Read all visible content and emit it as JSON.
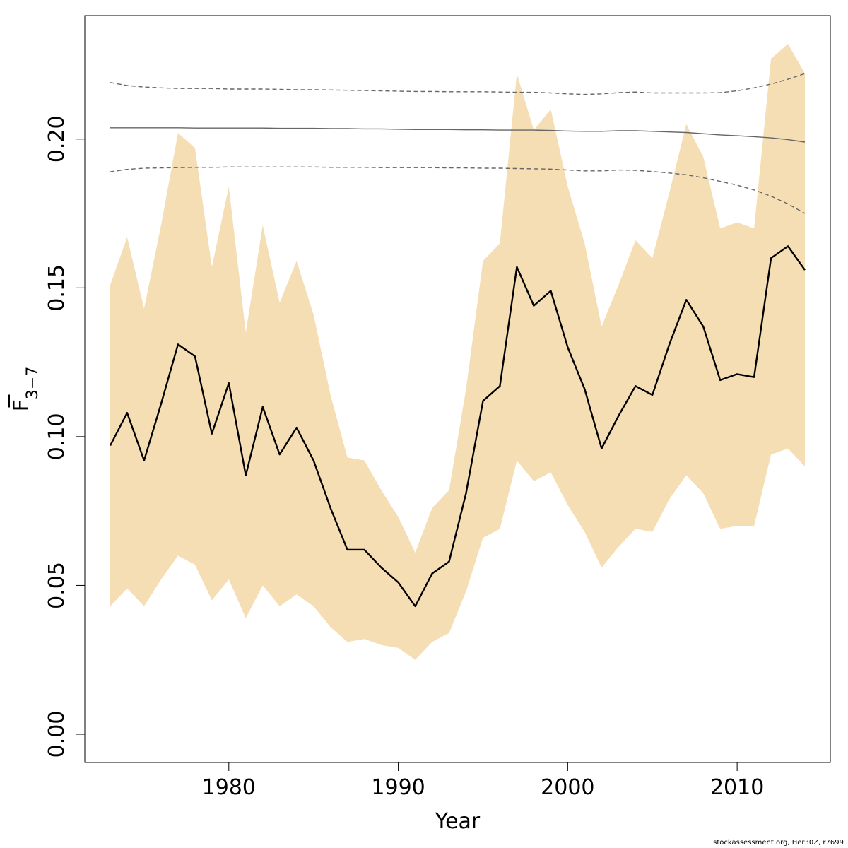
{
  "chart_data": {
    "type": "line",
    "xlabel": "Year",
    "ylabel_main": "F",
    "ylabel_sub": "3−7",
    "xlim": [
      1971.5,
      2015.5
    ],
    "ylim": [
      -0.0095,
      0.2415
    ],
    "x_ticks": [
      1980,
      1990,
      2000,
      2010
    ],
    "y_ticks": [
      0.0,
      0.05,
      0.1,
      0.15,
      0.2
    ],
    "y_tick_labels": [
      "0.00",
      "0.05",
      "0.10",
      "0.15",
      "0.20"
    ],
    "grid": false,
    "colors": {
      "band": "#f5deb3",
      "estimate": "#000000",
      "reference": "#666666"
    },
    "years": [
      1973,
      1974,
      1975,
      1976,
      1977,
      1978,
      1979,
      1980,
      1981,
      1982,
      1983,
      1984,
      1985,
      1986,
      1987,
      1988,
      1989,
      1990,
      1991,
      1992,
      1993,
      1994,
      1995,
      1996,
      1997,
      1998,
      1999,
      2000,
      2001,
      2002,
      2003,
      2004,
      2005,
      2006,
      2007,
      2008,
      2009,
      2010,
      2011,
      2012,
      2013,
      2014
    ],
    "series": [
      {
        "role": "estimate",
        "values": [
          0.097,
          0.108,
          0.092,
          0.111,
          0.131,
          0.127,
          0.101,
          0.118,
          0.087,
          0.11,
          0.094,
          0.103,
          0.092,
          0.076,
          0.062,
          0.062,
          0.056,
          0.051,
          0.043,
          0.054,
          0.058,
          0.081,
          0.112,
          0.117,
          0.157,
          0.144,
          0.149,
          0.13,
          0.116,
          0.096,
          0.107,
          0.117,
          0.114,
          0.131,
          0.146,
          0.137,
          0.119,
          0.121,
          0.12,
          0.16,
          0.164,
          0.156
        ]
      },
      {
        "role": "ci-lower",
        "values": [
          0.043,
          0.049,
          0.043,
          0.052,
          0.06,
          0.057,
          0.045,
          0.052,
          0.039,
          0.05,
          0.043,
          0.047,
          0.043,
          0.036,
          0.031,
          0.032,
          0.03,
          0.029,
          0.025,
          0.031,
          0.034,
          0.048,
          0.066,
          0.069,
          0.092,
          0.085,
          0.088,
          0.077,
          0.068,
          0.056,
          0.063,
          0.069,
          0.068,
          0.079,
          0.087,
          0.081,
          0.069,
          0.07,
          0.07,
          0.094,
          0.096,
          0.09
        ]
      },
      {
        "role": "ci-upper",
        "values": [
          0.151,
          0.167,
          0.143,
          0.171,
          0.202,
          0.197,
          0.157,
          0.184,
          0.135,
          0.171,
          0.145,
          0.159,
          0.141,
          0.114,
          0.093,
          0.092,
          0.082,
          0.073,
          0.061,
          0.076,
          0.082,
          0.116,
          0.159,
          0.165,
          0.222,
          0.203,
          0.21,
          0.184,
          0.165,
          0.137,
          0.151,
          0.166,
          0.16,
          0.182,
          0.205,
          0.194,
          0.17,
          0.172,
          0.17,
          0.227,
          0.232,
          0.222
        ]
      },
      {
        "role": "reference",
        "values": [
          0.2038,
          0.2038,
          0.2038,
          0.2038,
          0.2038,
          0.2037,
          0.2037,
          0.2037,
          0.2037,
          0.2037,
          0.2036,
          0.2036,
          0.2036,
          0.2035,
          0.2035,
          0.2034,
          0.2034,
          0.2033,
          0.2032,
          0.2032,
          0.2032,
          0.2031,
          0.2031,
          0.203,
          0.203,
          0.203,
          0.2029,
          0.2027,
          0.2026,
          0.2026,
          0.2028,
          0.2028,
          0.2026,
          0.2024,
          0.2022,
          0.2018,
          0.2014,
          0.2011,
          0.2008,
          0.2004,
          0.1998,
          0.199
        ]
      },
      {
        "role": "reference-upper",
        "values": [
          0.219,
          0.218,
          0.2175,
          0.2172,
          0.217,
          0.217,
          0.217,
          0.2168,
          0.2168,
          0.2168,
          0.2167,
          0.2166,
          0.2166,
          0.2165,
          0.2164,
          0.2163,
          0.2162,
          0.2161,
          0.216,
          0.216,
          0.2159,
          0.2159,
          0.2159,
          0.2158,
          0.2157,
          0.2157,
          0.2155,
          0.2152,
          0.215,
          0.2152,
          0.2156,
          0.2158,
          0.2155,
          0.2155,
          0.2155,
          0.2155,
          0.2156,
          0.2162,
          0.2172,
          0.2185,
          0.2201,
          0.222
        ]
      },
      {
        "role": "reference-lower",
        "values": [
          0.189,
          0.1898,
          0.1902,
          0.1903,
          0.1904,
          0.1905,
          0.1905,
          0.1906,
          0.1906,
          0.1906,
          0.1906,
          0.1906,
          0.1906,
          0.1905,
          0.1905,
          0.1905,
          0.1904,
          0.1904,
          0.1904,
          0.1904,
          0.1903,
          0.1903,
          0.1902,
          0.1902,
          0.1901,
          0.19,
          0.1899,
          0.1896,
          0.1893,
          0.1893,
          0.1896,
          0.1895,
          0.1891,
          0.1886,
          0.188,
          0.187,
          0.1858,
          0.1845,
          0.1829,
          0.1808,
          0.1782,
          0.175
        ]
      }
    ]
  },
  "footer": {
    "credit": "stockassessment.org, Her30Z, r7699"
  }
}
